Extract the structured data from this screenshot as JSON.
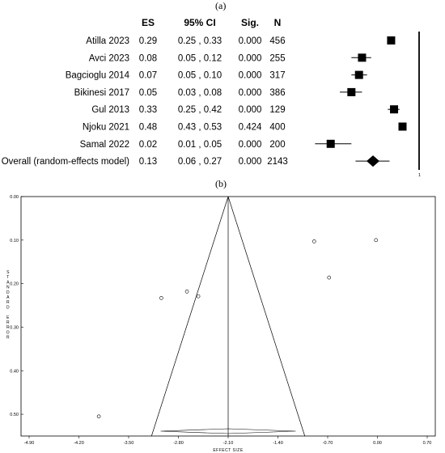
{
  "panels": {
    "a_label": "(a)",
    "b_label": "(b)"
  },
  "chart_data": [
    {
      "type": "forest",
      "headers": {
        "es": "ES",
        "ci": "95% CI",
        "sig": "Sig.",
        "n": "N"
      },
      "rows": [
        {
          "study": "Atilla 2023",
          "es": "0.29",
          "ci": "0.25 , 0.33",
          "sig": "0.000",
          "n": "456",
          "effect": 0.29,
          "lo": 0.25,
          "hi": 0.33
        },
        {
          "study": "Avci 2023",
          "es": "0.08",
          "ci": "0.05 , 0.12",
          "sig": "0.000",
          "n": "255",
          "effect": 0.08,
          "lo": 0.05,
          "hi": 0.12
        },
        {
          "study": "Bagcioglu 2014",
          "es": "0.07",
          "ci": "0.05 , 0.10",
          "sig": "0.000",
          "n": "317",
          "effect": 0.07,
          "lo": 0.05,
          "hi": 0.1
        },
        {
          "study": "Bikinesi 2017",
          "es": "0.05",
          "ci": "0.03 , 0.08",
          "sig": "0.000",
          "n": "386",
          "effect": 0.05,
          "lo": 0.03,
          "hi": 0.08
        },
        {
          "study": "Gul 2013",
          "es": "0.33",
          "ci": "0.25 , 0.42",
          "sig": "0.000",
          "n": "129",
          "effect": 0.33,
          "lo": 0.25,
          "hi": 0.42
        },
        {
          "study": "Njoku 2021",
          "es": "0.48",
          "ci": "0.43 , 0.53",
          "sig": "0.424",
          "n": "400",
          "effect": 0.48,
          "lo": 0.43,
          "hi": 0.53
        },
        {
          "study": "Samal 2022",
          "es": "0.02",
          "ci": "0.01 , 0.05",
          "sig": "0.000",
          "n": "200",
          "effect": 0.02,
          "lo": 0.01,
          "hi": 0.05
        }
      ],
      "overall": {
        "study": "Overall (random-effects model)",
        "es": "0.13",
        "ci": "0.06 , 0.27",
        "sig": "0.000",
        "n": "2143",
        "effect": 0.13,
        "lo": 0.06,
        "hi": 0.27
      },
      "reference_label": "1",
      "scale": "log",
      "xlim": [
        0.005,
        1
      ]
    },
    {
      "type": "scatter",
      "subtype": "funnel",
      "xlabel": "EFFECT SIZE",
      "ylabel": "STANDARD ERROR",
      "xticks": [
        "-4.90",
        "-4.20",
        "-3.50",
        "-2.80",
        "-2.10",
        "-1.40",
        "-0.70",
        "0.00",
        "0.70"
      ],
      "yticks": [
        "0.00",
        "0.10",
        "0.20",
        "0.30",
        "0.40",
        "0.50"
      ],
      "xlim": [
        -4.9,
        0.7
      ],
      "ylim": [
        0,
        0.55
      ],
      "y_inverted": true,
      "center": -2.1,
      "points": [
        {
          "x": -0.89,
          "y": 0.103
        },
        {
          "x": -0.02,
          "y": 0.1
        },
        {
          "x": -0.68,
          "y": 0.186
        },
        {
          "x": -2.68,
          "y": 0.218
        },
        {
          "x": -2.52,
          "y": 0.229
        },
        {
          "x": -3.04,
          "y": 0.233
        },
        {
          "x": -3.92,
          "y": 0.505
        }
      ],
      "funnel_bottom_y": 0.55,
      "summary_diamond": {
        "x": -2.1,
        "lo": -3.05,
        "hi": -1.15
      }
    }
  ]
}
